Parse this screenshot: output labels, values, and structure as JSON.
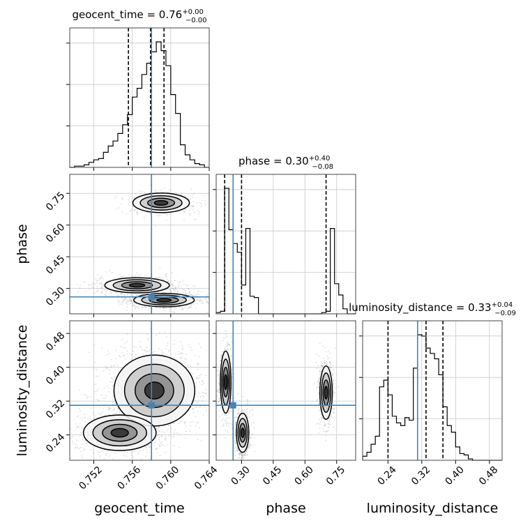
{
  "chart_data": {
    "type": "corner",
    "colors": {
      "truth": "#4682b4",
      "hist": "#000000",
      "quantile": "#000000",
      "grid": "#c8c8c8",
      "samples": "#9a9a9a"
    },
    "parameters": [
      "geocent_time",
      "phase",
      "luminosity_distance"
    ],
    "truths": {
      "geocent_time": 0.758,
      "phase": 0.26,
      "luminosity_distance": 0.31
    },
    "ranges": {
      "geocent_time": [
        0.7495,
        0.764
      ],
      "phase": [
        0.18,
        0.84
      ],
      "luminosity_distance": [
        0.18,
        0.51
      ]
    },
    "ticks": {
      "geocent_time": {
        "values": [
          0.752,
          0.756,
          0.76,
          0.764
        ],
        "labels": [
          "0.752",
          "0.756",
          "0.760",
          "0.764"
        ]
      },
      "phase": {
        "values": [
          0.3,
          0.45,
          0.6,
          0.75
        ],
        "labels": [
          "0.30",
          "0.45",
          "0.60",
          "0.75"
        ]
      },
      "luminosity_distance": {
        "values": [
          0.24,
          0.32,
          0.4,
          0.48
        ],
        "labels": [
          "0.24",
          "0.32",
          "0.40",
          "0.48"
        ]
      }
    },
    "titles": [
      {
        "param": "geocent_time",
        "text": "geocent_time = 0.76",
        "sup": "+0.00",
        "sub": "−0.00"
      },
      {
        "param": "phase",
        "text": "phase = 0.30",
        "sup": "+0.40",
        "sub": "−0.08"
      },
      {
        "param": "luminosity_distance",
        "text": "luminosity_distance = 0.33",
        "sup": "+0.04",
        "sub": "−0.09"
      }
    ],
    "quantiles": {
      "geocent_time": [
        0.7556,
        0.7579,
        0.7593
      ],
      "phase": [
        0.22,
        0.3,
        0.7
      ],
      "luminosity_distance": [
        0.24,
        0.33,
        0.37
      ]
    },
    "histograms": {
      "geocent_time": {
        "edges": [
          0.7495,
          0.75,
          0.7505,
          0.751,
          0.7515,
          0.752,
          0.7525,
          0.753,
          0.7535,
          0.754,
          0.7545,
          0.755,
          0.7555,
          0.756,
          0.7565,
          0.757,
          0.7575,
          0.758,
          0.7585,
          0.759,
          0.7595,
          0.76,
          0.7605,
          0.761,
          0.7615,
          0.762,
          0.7625,
          0.763,
          0.7635,
          0.764
        ],
        "counts": [
          0,
          1,
          1,
          2,
          4,
          6,
          7,
          12,
          17,
          21,
          27,
          34,
          42,
          56,
          63,
          74,
          83,
          92,
          100,
          93,
          81,
          58,
          43,
          18,
          10,
          6,
          3,
          2,
          0
        ]
      },
      "phase": {
        "edges": [
          0.18,
          0.2,
          0.22,
          0.24,
          0.26,
          0.28,
          0.3,
          0.32,
          0.34,
          0.36,
          0.38,
          0.4,
          0.42,
          0.44,
          0.46,
          0.48,
          0.5,
          0.52,
          0.54,
          0.56,
          0.58,
          0.6,
          0.62,
          0.64,
          0.66,
          0.68,
          0.7,
          0.72,
          0.74,
          0.76,
          0.78,
          0.8,
          0.82,
          0.84
        ],
        "counts": [
          1,
          2,
          100,
          67,
          56,
          49,
          23,
          68,
          14,
          13,
          0,
          0,
          0,
          0,
          0,
          0,
          0,
          0,
          0,
          0,
          0,
          0,
          0,
          0,
          0,
          1,
          2,
          68,
          24,
          15,
          4,
          0,
          0
        ]
      },
      "luminosity_distance": {
        "edges": [
          0.18,
          0.19,
          0.2,
          0.21,
          0.22,
          0.23,
          0.24,
          0.25,
          0.26,
          0.27,
          0.28,
          0.29,
          0.3,
          0.31,
          0.32,
          0.33,
          0.34,
          0.35,
          0.36,
          0.37,
          0.38,
          0.39,
          0.4,
          0.41,
          0.42,
          0.43,
          0.44,
          0.45,
          0.46,
          0.47,
          0.48,
          0.49,
          0.5,
          0.51
        ],
        "counts": [
          3,
          6,
          12,
          18,
          55,
          60,
          49,
          33,
          28,
          26,
          32,
          30,
          69,
          94,
          93,
          84,
          80,
          76,
          64,
          40,
          26,
          21,
          10,
          5,
          4,
          1,
          0,
          0,
          0,
          0,
          0,
          0,
          0
        ]
      }
    },
    "modes": [
      {
        "pair": [
          "geocent_time",
          "phase"
        ],
        "center": [
          0.759,
          0.705
        ],
        "sd": [
          0.0014,
          0.022
        ],
        "weight": 0.22
      },
      {
        "pair": [
          "geocent_time",
          "phase"
        ],
        "center": [
          0.7565,
          0.315
        ],
        "sd": [
          0.0016,
          0.017
        ],
        "weight": 0.34
      },
      {
        "pair": [
          "geocent_time",
          "phase"
        ],
        "center": [
          0.7593,
          0.245
        ],
        "sd": [
          0.0015,
          0.015
        ],
        "weight": 0.44
      },
      {
        "pair": [
          "geocent_time",
          "luminosity_distance"
        ],
        "center": [
          0.7583,
          0.345
        ],
        "sd": [
          0.002,
          0.04
        ],
        "weight": 0.62
      },
      {
        "pair": [
          "geocent_time",
          "luminosity_distance"
        ],
        "center": [
          0.7547,
          0.245
        ],
        "sd": [
          0.0018,
          0.02
        ],
        "weight": 0.38
      },
      {
        "pair": [
          "phase",
          "luminosity_distance"
        ],
        "center": [
          0.225,
          0.365
        ],
        "sd": [
          0.012,
          0.035
        ],
        "weight": 0.3
      },
      {
        "pair": [
          "phase",
          "luminosity_distance"
        ],
        "center": [
          0.305,
          0.245
        ],
        "sd": [
          0.014,
          0.022
        ],
        "weight": 0.36
      },
      {
        "pair": [
          "phase",
          "luminosity_distance"
        ],
        "center": [
          0.7,
          0.34
        ],
        "sd": [
          0.014,
          0.03
        ],
        "weight": 0.34
      }
    ]
  }
}
